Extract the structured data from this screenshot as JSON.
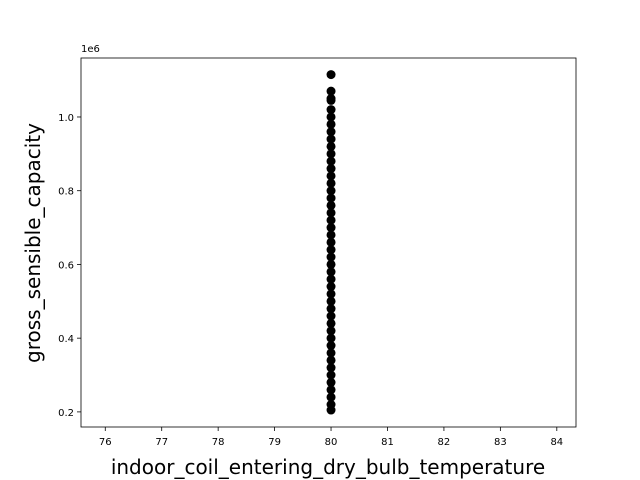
{
  "chart_data": {
    "type": "scatter",
    "x_label": "indoor_coil_entering_dry_bulb_temperature",
    "y_label": "gross_sensible_capacity",
    "y_offset_label": "1e6",
    "color": "#000000",
    "x": [
      80,
      80,
      80,
      80,
      80,
      80,
      80,
      80,
      80,
      80,
      80,
      80,
      80,
      80,
      80,
      80,
      80,
      80,
      80,
      80,
      80,
      80,
      80,
      80,
      80,
      80,
      80,
      80,
      80,
      80,
      80,
      80,
      80,
      80,
      80,
      80,
      80,
      80,
      80,
      80,
      80,
      80,
      80,
      80,
      80,
      80
    ],
    "values": [
      1.115,
      1.07,
      1.05,
      1.045,
      1.02,
      1.0,
      0.98,
      0.96,
      0.94,
      0.92,
      0.9,
      0.88,
      0.86,
      0.84,
      0.82,
      0.8,
      0.78,
      0.76,
      0.74,
      0.72,
      0.7,
      0.68,
      0.66,
      0.64,
      0.62,
      0.6,
      0.58,
      0.56,
      0.54,
      0.52,
      0.5,
      0.48,
      0.46,
      0.44,
      0.42,
      0.4,
      0.38,
      0.36,
      0.34,
      0.32,
      0.3,
      0.28,
      0.26,
      0.24,
      0.22,
      0.205
    ],
    "xlim": [
      75.57,
      84.34
    ],
    "xticks": [
      76,
      77,
      78,
      79,
      80,
      81,
      82,
      83,
      84
    ],
    "ylim": [
      0.159,
      1.16
    ],
    "yticks": [
      0.2,
      0.4,
      0.6,
      0.8,
      {
        "value": 1.0,
        "label": "1.0"
      }
    ]
  }
}
